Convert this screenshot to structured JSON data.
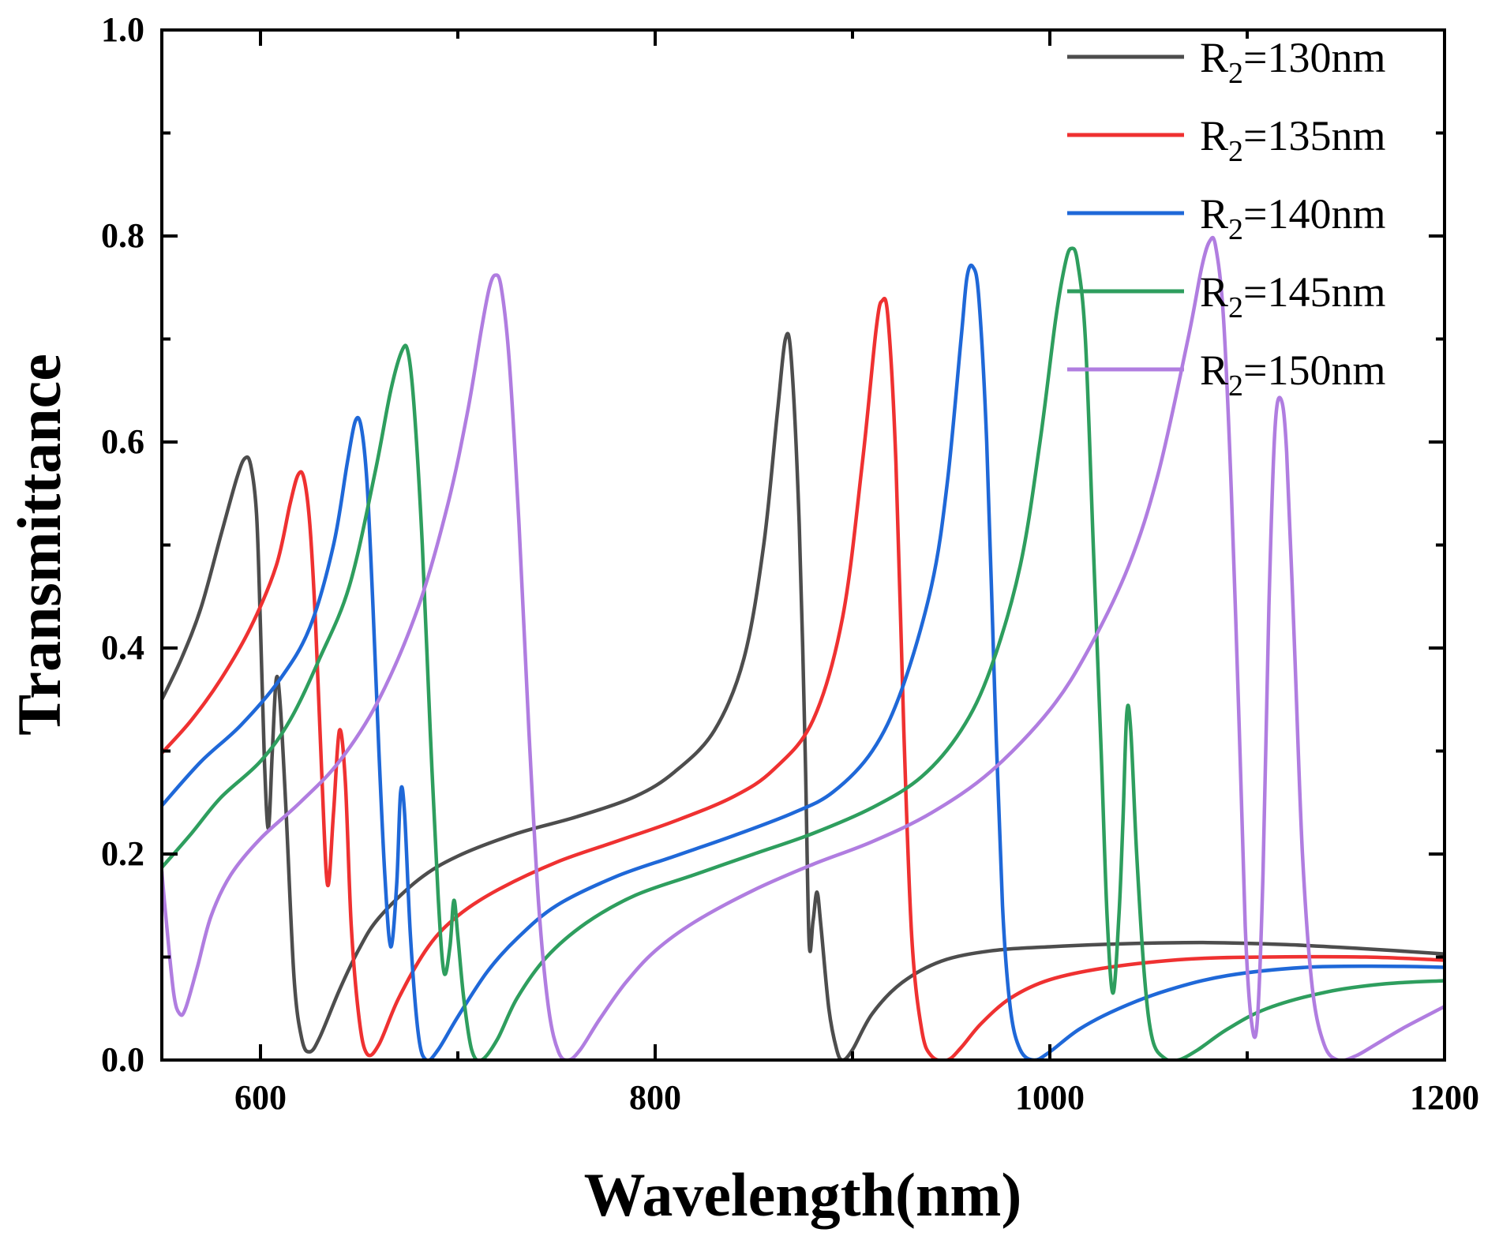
{
  "chart_data": {
    "type": "line",
    "title": "",
    "xlabel": "Wavelength(nm)",
    "ylabel": "Transmittance",
    "xlim": [
      550,
      1200
    ],
    "ylim": [
      0.0,
      1.0
    ],
    "x_ticks": [
      600,
      800,
      1000,
      1200
    ],
    "x_tick_labels": [
      "600",
      "800",
      "1000",
      "1200"
    ],
    "x_minor_ticks": [
      700,
      900,
      1100
    ],
    "y_ticks": [
      0.0,
      0.2,
      0.4,
      0.6,
      0.8,
      1.0
    ],
    "y_tick_labels": [
      "0.0",
      "0.2",
      "0.4",
      "0.6",
      "0.8",
      "1.0"
    ],
    "y_minor_ticks": [
      0.1,
      0.3,
      0.5,
      0.7,
      0.9
    ],
    "grid": false,
    "legend_position": "top-right",
    "series": [
      {
        "name": "R2=130nm",
        "label_base": "R",
        "label_sub": "2",
        "label_rest": "=130nm",
        "color": "#4d4d4d",
        "points": [
          [
            550,
            0.35
          ],
          [
            560,
            0.39
          ],
          [
            570,
            0.44
          ],
          [
            580,
            0.51
          ],
          [
            588,
            0.565
          ],
          [
            592,
            0.584
          ],
          [
            595,
            0.578
          ],
          [
            598,
            0.53
          ],
          [
            600,
            0.42
          ],
          [
            602,
            0.29
          ],
          [
            604,
            0.225
          ],
          [
            606,
            0.3
          ],
          [
            608,
            0.37
          ],
          [
            610,
            0.345
          ],
          [
            613,
            0.24
          ],
          [
            617,
            0.08
          ],
          [
            621,
            0.02
          ],
          [
            625,
            0.008
          ],
          [
            630,
            0.022
          ],
          [
            640,
            0.068
          ],
          [
            650,
            0.108
          ],
          [
            660,
            0.138
          ],
          [
            680,
            0.175
          ],
          [
            700,
            0.198
          ],
          [
            730,
            0.22
          ],
          [
            760,
            0.236
          ],
          [
            790,
            0.256
          ],
          [
            810,
            0.28
          ],
          [
            830,
            0.32
          ],
          [
            845,
            0.39
          ],
          [
            855,
            0.5
          ],
          [
            862,
            0.63
          ],
          [
            866,
            0.7
          ],
          [
            869,
            0.68
          ],
          [
            873,
            0.52
          ],
          [
            876,
            0.3
          ],
          [
            878,
            0.115
          ],
          [
            880,
            0.135
          ],
          [
            882,
            0.163
          ],
          [
            884,
            0.13
          ],
          [
            888,
            0.05
          ],
          [
            892,
            0.01
          ],
          [
            895,
            0.0
          ],
          [
            900,
            0.01
          ],
          [
            910,
            0.045
          ],
          [
            925,
            0.075
          ],
          [
            945,
            0.096
          ],
          [
            970,
            0.106
          ],
          [
            1000,
            0.11
          ],
          [
            1040,
            0.113
          ],
          [
            1080,
            0.114
          ],
          [
            1120,
            0.112
          ],
          [
            1160,
            0.108
          ],
          [
            1200,
            0.103
          ]
        ]
      },
      {
        "name": "R2=135nm",
        "label_base": "R",
        "label_sub": "2",
        "label_rest": "=135nm",
        "color": "#ef3131",
        "points": [
          [
            550,
            0.298
          ],
          [
            565,
            0.33
          ],
          [
            580,
            0.37
          ],
          [
            595,
            0.42
          ],
          [
            608,
            0.48
          ],
          [
            615,
            0.54
          ],
          [
            619,
            0.568
          ],
          [
            622,
            0.565
          ],
          [
            625,
            0.52
          ],
          [
            628,
            0.42
          ],
          [
            631,
            0.28
          ],
          [
            634,
            0.17
          ],
          [
            637,
            0.24
          ],
          [
            640,
            0.32
          ],
          [
            643,
            0.27
          ],
          [
            646,
            0.13
          ],
          [
            650,
            0.04
          ],
          [
            654,
            0.006
          ],
          [
            660,
            0.015
          ],
          [
            670,
            0.06
          ],
          [
            685,
            0.11
          ],
          [
            700,
            0.14
          ],
          [
            720,
            0.165
          ],
          [
            750,
            0.192
          ],
          [
            780,
            0.212
          ],
          [
            810,
            0.232
          ],
          [
            840,
            0.256
          ],
          [
            860,
            0.282
          ],
          [
            880,
            0.33
          ],
          [
            895,
            0.43
          ],
          [
            905,
            0.58
          ],
          [
            912,
            0.71
          ],
          [
            915,
            0.737
          ],
          [
            918,
            0.72
          ],
          [
            922,
            0.58
          ],
          [
            926,
            0.32
          ],
          [
            930,
            0.12
          ],
          [
            935,
            0.03
          ],
          [
            940,
            0.004
          ],
          [
            948,
            0.0
          ],
          [
            955,
            0.012
          ],
          [
            965,
            0.035
          ],
          [
            980,
            0.06
          ],
          [
            1000,
            0.078
          ],
          [
            1030,
            0.09
          ],
          [
            1070,
            0.098
          ],
          [
            1110,
            0.1
          ],
          [
            1160,
            0.1
          ],
          [
            1200,
            0.097
          ]
        ]
      },
      {
        "name": "R2=140nm",
        "label_base": "R",
        "label_sub": "2",
        "label_rest": "=140nm",
        "color": "#1f68d8",
        "points": [
          [
            550,
            0.247
          ],
          [
            570,
            0.29
          ],
          [
            590,
            0.325
          ],
          [
            610,
            0.37
          ],
          [
            625,
            0.42
          ],
          [
            637,
            0.5
          ],
          [
            644,
            0.58
          ],
          [
            648,
            0.62
          ],
          [
            651,
            0.615
          ],
          [
            654,
            0.56
          ],
          [
            657,
            0.44
          ],
          [
            660,
            0.3
          ],
          [
            663,
            0.18
          ],
          [
            666,
            0.11
          ],
          [
            669,
            0.17
          ],
          [
            671,
            0.26
          ],
          [
            673,
            0.24
          ],
          [
            676,
            0.12
          ],
          [
            680,
            0.025
          ],
          [
            684,
            0.0
          ],
          [
            690,
            0.01
          ],
          [
            700,
            0.042
          ],
          [
            715,
            0.086
          ],
          [
            730,
            0.118
          ],
          [
            750,
            0.15
          ],
          [
            780,
            0.178
          ],
          [
            810,
            0.198
          ],
          [
            840,
            0.218
          ],
          [
            870,
            0.24
          ],
          [
            890,
            0.26
          ],
          [
            910,
            0.3
          ],
          [
            925,
            0.36
          ],
          [
            940,
            0.46
          ],
          [
            948,
            0.56
          ],
          [
            955,
            0.7
          ],
          [
            958,
            0.76
          ],
          [
            961,
            0.77
          ],
          [
            964,
            0.74
          ],
          [
            968,
            0.6
          ],
          [
            972,
            0.36
          ],
          [
            976,
            0.15
          ],
          [
            980,
            0.05
          ],
          [
            985,
            0.01
          ],
          [
            992,
            0.0
          ],
          [
            1000,
            0.008
          ],
          [
            1015,
            0.03
          ],
          [
            1035,
            0.05
          ],
          [
            1060,
            0.068
          ],
          [
            1090,
            0.082
          ],
          [
            1130,
            0.09
          ],
          [
            1170,
            0.091
          ],
          [
            1200,
            0.09
          ]
        ]
      },
      {
        "name": "R2=145nm",
        "label_base": "R",
        "label_sub": "2",
        "label_rest": "=145nm",
        "color": "#2e9e5e",
        "points": [
          [
            550,
            0.187
          ],
          [
            565,
            0.22
          ],
          [
            580,
            0.255
          ],
          [
            600,
            0.29
          ],
          [
            615,
            0.33
          ],
          [
            630,
            0.39
          ],
          [
            645,
            0.46
          ],
          [
            658,
            0.57
          ],
          [
            666,
            0.65
          ],
          [
            672,
            0.69
          ],
          [
            675,
            0.685
          ],
          [
            678,
            0.63
          ],
          [
            682,
            0.5
          ],
          [
            686,
            0.32
          ],
          [
            690,
            0.16
          ],
          [
            693,
            0.085
          ],
          [
            696,
            0.11
          ],
          [
            698,
            0.155
          ],
          [
            700,
            0.12
          ],
          [
            703,
            0.06
          ],
          [
            707,
            0.01
          ],
          [
            712,
            0.0
          ],
          [
            720,
            0.02
          ],
          [
            730,
            0.06
          ],
          [
            745,
            0.1
          ],
          [
            765,
            0.133
          ],
          [
            790,
            0.16
          ],
          [
            820,
            0.18
          ],
          [
            850,
            0.2
          ],
          [
            880,
            0.22
          ],
          [
            910,
            0.245
          ],
          [
            935,
            0.275
          ],
          [
            955,
            0.32
          ],
          [
            970,
            0.38
          ],
          [
            985,
            0.48
          ],
          [
            995,
            0.6
          ],
          [
            1003,
            0.72
          ],
          [
            1008,
            0.775
          ],
          [
            1011,
            0.788
          ],
          [
            1014,
            0.775
          ],
          [
            1018,
            0.7
          ],
          [
            1022,
            0.5
          ],
          [
            1026,
            0.3
          ],
          [
            1029,
            0.14
          ],
          [
            1032,
            0.065
          ],
          [
            1035,
            0.14
          ],
          [
            1037,
            0.23
          ],
          [
            1039,
            0.337
          ],
          [
            1041,
            0.32
          ],
          [
            1044,
            0.2
          ],
          [
            1048,
            0.08
          ],
          [
            1052,
            0.02
          ],
          [
            1058,
            0.002
          ],
          [
            1065,
            0.0
          ],
          [
            1075,
            0.01
          ],
          [
            1090,
            0.03
          ],
          [
            1110,
            0.05
          ],
          [
            1140,
            0.066
          ],
          [
            1170,
            0.074
          ],
          [
            1200,
            0.077
          ]
        ]
      },
      {
        "name": "R2=150nm",
        "label_base": "R",
        "label_sub": "2",
        "label_rest": "=150nm",
        "color": "#b07de0",
        "points": [
          [
            550,
            0.183
          ],
          [
            552,
            0.14
          ],
          [
            556,
            0.065
          ],
          [
            559,
            0.045
          ],
          [
            562,
            0.05
          ],
          [
            568,
            0.09
          ],
          [
            575,
            0.14
          ],
          [
            585,
            0.18
          ],
          [
            600,
            0.215
          ],
          [
            620,
            0.25
          ],
          [
            640,
            0.29
          ],
          [
            660,
            0.35
          ],
          [
            680,
            0.44
          ],
          [
            695,
            0.54
          ],
          [
            705,
            0.63
          ],
          [
            712,
            0.71
          ],
          [
            716,
            0.75
          ],
          [
            719,
            0.762
          ],
          [
            722,
            0.75
          ],
          [
            726,
            0.68
          ],
          [
            731,
            0.52
          ],
          [
            736,
            0.32
          ],
          [
            741,
            0.15
          ],
          [
            746,
            0.05
          ],
          [
            751,
            0.008
          ],
          [
            756,
            0.0
          ],
          [
            762,
            0.01
          ],
          [
            772,
            0.04
          ],
          [
            785,
            0.075
          ],
          [
            800,
            0.106
          ],
          [
            820,
            0.134
          ],
          [
            850,
            0.165
          ],
          [
            880,
            0.19
          ],
          [
            910,
            0.212
          ],
          [
            940,
            0.24
          ],
          [
            970,
            0.28
          ],
          [
            1000,
            0.34
          ],
          [
            1020,
            0.4
          ],
          [
            1040,
            0.48
          ],
          [
            1055,
            0.57
          ],
          [
            1070,
            0.7
          ],
          [
            1077,
            0.77
          ],
          [
            1081,
            0.795
          ],
          [
            1084,
            0.79
          ],
          [
            1088,
            0.72
          ],
          [
            1092,
            0.55
          ],
          [
            1096,
            0.32
          ],
          [
            1099,
            0.13
          ],
          [
            1102,
            0.04
          ],
          [
            1105,
            0.035
          ],
          [
            1108,
            0.18
          ],
          [
            1111,
            0.44
          ],
          [
            1114,
            0.61
          ],
          [
            1117,
            0.642
          ],
          [
            1120,
            0.59
          ],
          [
            1124,
            0.4
          ],
          [
            1128,
            0.2
          ],
          [
            1133,
            0.07
          ],
          [
            1139,
            0.015
          ],
          [
            1146,
            0.0
          ],
          [
            1155,
            0.004
          ],
          [
            1165,
            0.015
          ],
          [
            1180,
            0.032
          ],
          [
            1200,
            0.052
          ]
        ]
      }
    ]
  }
}
